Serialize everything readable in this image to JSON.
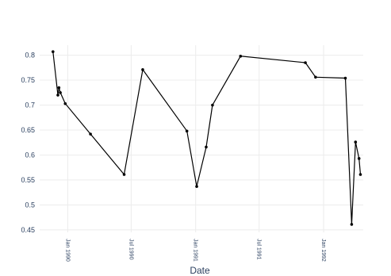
{
  "chart_data": {
    "type": "line",
    "xlabel": "Date",
    "ylabel": "",
    "title": "",
    "x_tick_labels": [
      "Jan 1990",
      "Jul 1990",
      "Jan 1991",
      "Jul 1991",
      "Jan 1992"
    ],
    "x_ticks": [
      "1990-01-01",
      "1990-07-01",
      "1991-01-01",
      "1991-07-01",
      "1992-01-01"
    ],
    "xlim": [
      "1989-10-13",
      "1992-04-23"
    ],
    "ylim": [
      0.445,
      0.82
    ],
    "y_ticks": [
      0.45,
      0.5,
      0.55,
      0.6,
      0.65,
      0.7,
      0.75,
      0.8
    ],
    "y_tick_labels": [
      "0.45",
      "0.5",
      "0.55",
      "0.6",
      "0.65",
      "0.7",
      "0.75",
      "0.8"
    ],
    "grid": true,
    "legend": false,
    "line_color": "#000000",
    "series": [
      {
        "x": [
          "1989-11-20",
          "1989-12-04",
          "1989-12-07",
          "1989-12-11",
          "1989-12-25",
          "1990-03-07",
          "1990-06-11",
          "1990-08-03",
          "1990-12-07",
          "1991-01-04",
          "1991-01-31",
          "1991-02-18",
          "1991-05-09",
          "1991-11-10",
          "1991-12-09",
          "1992-03-03",
          "1992-03-21",
          "1992-04-01",
          "1992-04-11",
          "1992-04-15"
        ],
        "y": [
          0.807,
          0.72,
          0.735,
          0.725,
          0.703,
          0.642,
          0.561,
          0.771,
          0.648,
          0.537,
          0.616,
          0.7,
          0.798,
          0.785,
          0.756,
          0.754,
          0.461,
          0.626,
          0.593,
          0.561
        ]
      }
    ]
  }
}
